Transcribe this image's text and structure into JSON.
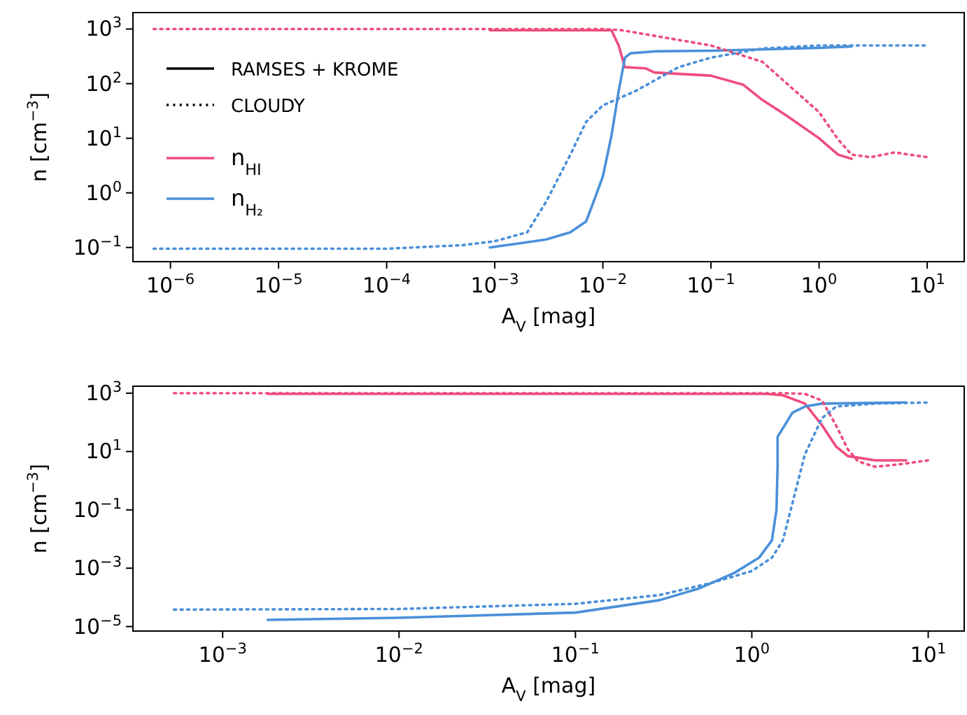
{
  "chart_data": [
    {
      "type": "line",
      "xlabel": "A$_{V}$  [mag]",
      "ylabel": "n  [cm$^{−3}$]",
      "log": "xy",
      "legend": "left",
      "grid": false,
      "annotations": [
        "RAMSES + KROME",
        "CLOUDY"
      ],
      "xlim": [
        4.5e-07,
        22
      ],
      "ylim": [
        0.055,
        2000
      ],
      "xticks": [
        {
          "value": 1e-06,
          "label": "10$^{−6}$"
        },
        {
          "value": 1e-05,
          "label": "10$^{−5}$"
        },
        {
          "value": 0.0001,
          "label": "10$^{−4}$"
        },
        {
          "value": 0.001,
          "label": "10$^{−3}$"
        },
        {
          "value": 0.01,
          "label": "10$^{−2}$"
        },
        {
          "value": 0.1,
          "label": "10$^{−1}$"
        },
        {
          "value": 1,
          "label": "10$^{0}$"
        },
        {
          "value": 10,
          "label": "10$^{1}$"
        }
      ],
      "yticks": [
        {
          "value": 0.1,
          "label": "10$^{−1}$"
        },
        {
          "value": 1,
          "label": "10$^{0}$"
        },
        {
          "value": 10,
          "label": "10$^{1}$"
        },
        {
          "value": 100,
          "label": "10$^{2}$"
        },
        {
          "value": 1000,
          "label": "10$^{3}$"
        }
      ],
      "series": [
        {
          "name": "n$_{HI}$",
          "color": "#ee4c7c",
          "line_style": "solid",
          "x": [
            0.0009,
            0.003,
            0.012,
            0.014,
            0.016,
            0.025,
            0.03,
            0.1,
            0.2,
            0.3,
            0.5,
            1,
            1.5,
            2
          ],
          "values": [
            950,
            950,
            950,
            500,
            200,
            190,
            160,
            140,
            95,
            50,
            26,
            10,
            5,
            4.2
          ]
        },
        {
          "name": "n$_{H₂}$",
          "color": "#4a90d9",
          "line_style": "solid",
          "x": [
            0.0009,
            0.003,
            0.005,
            0.007,
            0.008,
            0.01,
            0.012,
            0.014,
            0.016,
            0.018,
            0.03,
            0.1,
            1,
            2
          ],
          "values": [
            0.1,
            0.14,
            0.19,
            0.3,
            0.6,
            2,
            11,
            73,
            300,
            360,
            390,
            400,
            450,
            480
          ]
        },
        {
          "color": "#ee4c7c",
          "line_style": "dotted",
          "x": [
            7e-07,
            0.001,
            0.01,
            0.015,
            0.1,
            0.3,
            1,
            1.5,
            2,
            3,
            5,
            10
          ],
          "values": [
            1000,
            1000,
            1000,
            950,
            500,
            250,
            30,
            9.5,
            5,
            4.5,
            5.5,
            4.5
          ]
        },
        {
          "color": "#4a90d9",
          "line_style": "dotted",
          "x": [
            7e-07,
            0.0001,
            0.0005,
            0.001,
            0.002,
            0.003,
            0.005,
            0.007,
            0.01,
            0.02,
            0.05,
            0.1,
            0.3,
            1,
            10
          ],
          "values": [
            0.095,
            0.095,
            0.11,
            0.13,
            0.19,
            0.7,
            5,
            20,
            40,
            73,
            200,
            300,
            440,
            500,
            500
          ]
        }
      ]
    },
    {
      "type": "line",
      "xlabel": "A$_{V}$  [mag]",
      "ylabel": "n  [cm$^{−3}$]",
      "log": "xy",
      "grid": false,
      "xlim": [
        0.00031,
        16
      ],
      "ylim": [
        7e-06,
        1740
      ],
      "xticks": [
        {
          "value": 0.001,
          "label": "10$^{−3}$"
        },
        {
          "value": 0.01,
          "label": "10$^{−2}$"
        },
        {
          "value": 0.1,
          "label": "10$^{−1}$"
        },
        {
          "value": 1,
          "label": "10$^{0}$"
        },
        {
          "value": 10,
          "label": "10$^{1}$"
        }
      ],
      "yticks": [
        {
          "value": 1e-05,
          "label": "10$^{−5}$"
        },
        {
          "value": 0.001,
          "label": "10$^{−3}$"
        },
        {
          "value": 0.1,
          "label": "10$^{−1}$"
        },
        {
          "value": 10,
          "label": "10$^{1}$"
        },
        {
          "value": 1000,
          "label": "10$^{3}$"
        }
      ],
      "series": [
        {
          "color": "#ee4c7c",
          "line_style": "solid",
          "x": [
            0.0018,
            0.1,
            1.2,
            1.5,
            2,
            2.5,
            3,
            3.5,
            5,
            7.5
          ],
          "values": [
            950,
            950,
            950,
            850,
            440,
            80,
            15,
            7,
            5,
            5
          ]
        },
        {
          "color": "#4a90d9",
          "line_style": "solid",
          "x": [
            0.0018,
            0.01,
            0.1,
            0.3,
            0.5,
            0.8,
            1.1,
            1.3,
            1.38,
            1.4,
            1.4,
            1.7,
            2,
            2.5,
            7.5
          ],
          "values": [
            1.7e-05,
            2e-05,
            3e-05,
            8e-05,
            0.0002,
            0.0007,
            0.0023,
            0.009,
            0.1,
            3.2,
            32,
            215,
            350,
            440,
            480
          ]
        },
        {
          "color": "#ee4c7c",
          "line_style": "dotted",
          "x": [
            0.00053,
            0.1,
            1.5,
            2,
            2.5,
            3,
            3.5,
            4,
            5,
            7,
            10
          ],
          "values": [
            1000,
            1000,
            1000,
            950,
            560,
            80,
            12,
            4.6,
            3,
            3.7,
            5
          ]
        },
        {
          "color": "#4a90d9",
          "line_style": "dotted",
          "x": [
            0.00053,
            0.01,
            0.1,
            0.3,
            0.6,
            1,
            1.3,
            1.5,
            1.7,
            2,
            2.5,
            3,
            5,
            10
          ],
          "values": [
            3.8e-05,
            4e-05,
            6e-05,
            0.00012,
            0.00032,
            0.0008,
            0.0023,
            0.009,
            0.17,
            8,
            140,
            350,
            440,
            480
          ]
        }
      ]
    }
  ]
}
